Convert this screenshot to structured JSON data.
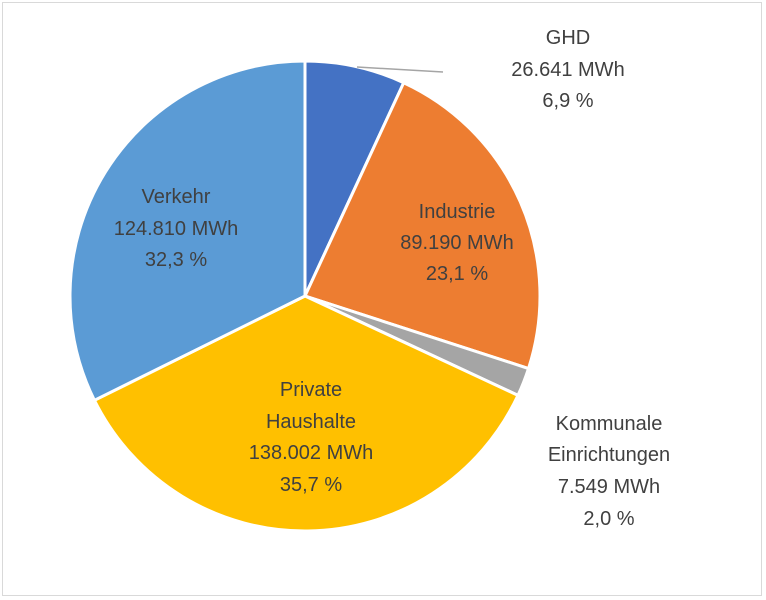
{
  "chart_data": {
    "type": "pie",
    "title": "",
    "slices": [
      {
        "name": "GHD",
        "value": 26641,
        "value_label": "26.641  MWh",
        "percent_label": "6,9 %",
        "color": "#4472c4"
      },
      {
        "name": "Industrie",
        "value": 89190,
        "value_label": "89.190 MWh",
        "percent_label": "23,1 %",
        "color": "#ed7d31"
      },
      {
        "name": "Kommunale Einrichtungen",
        "value": 7549,
        "value_label": "7.549 MWh",
        "percent_label": "2,0 %",
        "color": "#a5a5a5"
      },
      {
        "name": "Private Haushalte",
        "value": 138002,
        "value_label": "138.002 MWh",
        "percent_label": "35,7 %",
        "color": "#ffc000"
      },
      {
        "name": "Verkehr",
        "value": 124810,
        "value_label": "124.810 MWh",
        "percent_label": "32,3 %",
        "color": "#5b9bd5"
      }
    ],
    "legend": "none",
    "labels": {
      "ghd": {
        "line1": "GHD",
        "line2": "26.641  MWh",
        "line3": "6,9 %"
      },
      "industrie": {
        "line1": "Industrie",
        "line2": "89.190 MWh",
        "line3": "23,1 %"
      },
      "kommunal": {
        "line1": "Kommunale",
        "line2": "Einrichtungen",
        "line3": "7.549 MWh",
        "line4": "2,0 %"
      },
      "private": {
        "line1": "Private",
        "line2": "Haushalte",
        "line3": "138.002 MWh",
        "line4": "35,7 %"
      },
      "verkehr": {
        "line1": "Verkehr",
        "line2": "124.810 MWh",
        "line3": "32,3 %"
      }
    }
  }
}
